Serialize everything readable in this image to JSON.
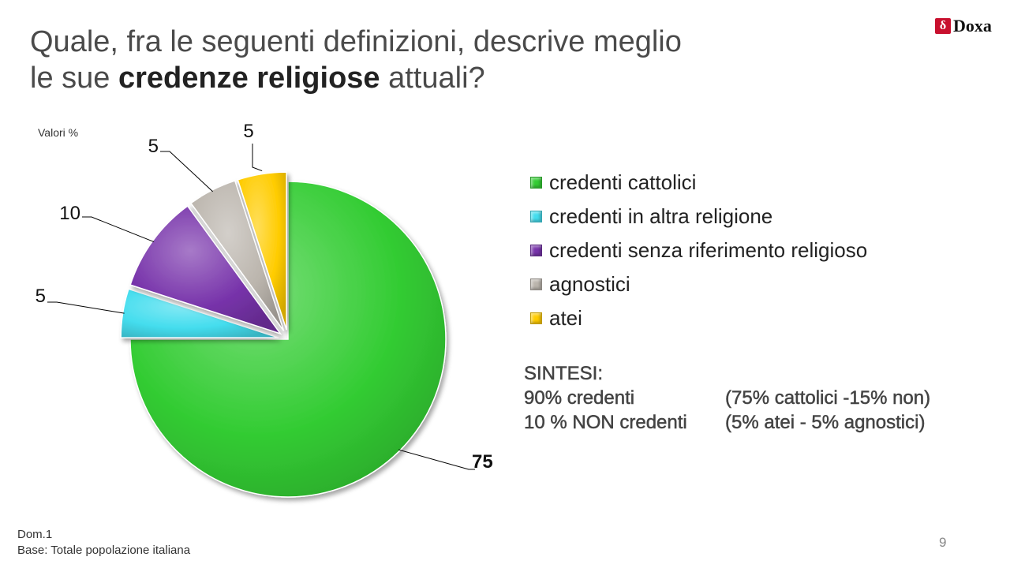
{
  "title": {
    "line1": "Quale, fra le seguenti definizioni, descrive meglio",
    "line2_pre": "le sue ",
    "line2_bold": "credenze religiose",
    "line2_post": " attuali?"
  },
  "logo": {
    "mark": "δ",
    "text": "Doxa"
  },
  "unit_note": "Valori %",
  "chart_data": {
    "type": "pie",
    "title": "",
    "slices": [
      {
        "label": "credenti cattolici",
        "value": 75,
        "color": "#33cc33",
        "exploded": false,
        "bold": true
      },
      {
        "label": "credenti in altra religione",
        "value": 5,
        "color": "#44ddee",
        "exploded": true,
        "bold": false
      },
      {
        "label": "credenti senza riferimento religioso",
        "value": 10,
        "color": "#7733aa",
        "exploded": true,
        "bold": false
      },
      {
        "label": "agnostici",
        "value": 5,
        "color": "#bbb5ad",
        "exploded": true,
        "bold": false
      },
      {
        "label": "atei",
        "value": 5,
        "color": "#ffcc00",
        "exploded": true,
        "bold": false
      }
    ],
    "legend_position": "right"
  },
  "sintesi": {
    "heading": "SINTESI:",
    "rows": [
      {
        "left": "90% credenti",
        "right": "(75% cattolici -15% non)"
      },
      {
        "left": "10 % NON credenti",
        "right": "(5% atei - 5% agnostici)"
      }
    ]
  },
  "footer": {
    "line1": "Dom.1",
    "line2": "Base: Totale popolazione italiana"
  },
  "page_number": "9"
}
